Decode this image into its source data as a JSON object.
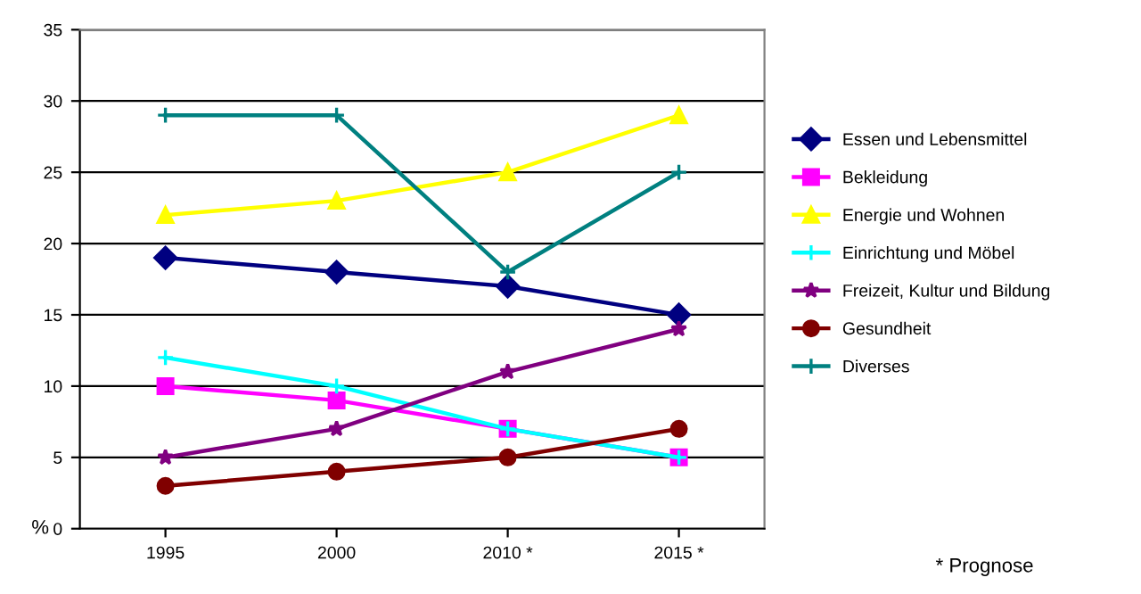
{
  "chart_data": {
    "type": "line",
    "ylabel": "%",
    "categories": [
      "1995",
      "2000",
      "2010 *",
      "2015 *"
    ],
    "series": [
      {
        "name": "Essen und Lebensmittel",
        "color": "#000080",
        "marker": "diamond",
        "values": [
          19,
          18,
          17,
          15
        ]
      },
      {
        "name": "Bekleidung",
        "color": "#ff00ff",
        "marker": "square",
        "values": [
          10,
          9,
          7,
          5
        ]
      },
      {
        "name": "Energie und Wohnen",
        "color": "#ffff00",
        "marker": "triangle",
        "values": [
          22,
          23,
          25,
          29
        ]
      },
      {
        "name": "Einrichtung und Möbel",
        "color": "#00ffff",
        "marker": "cross",
        "values": [
          12,
          10,
          7,
          5
        ]
      },
      {
        "name": "Freizeit, Kultur und Bildung",
        "color": "#800080",
        "marker": "star",
        "values": [
          5,
          7,
          11,
          14
        ]
      },
      {
        "name": "Gesundheit",
        "color": "#800000",
        "marker": "circle",
        "values": [
          3,
          4,
          5,
          7
        ]
      },
      {
        "name": "Diverses",
        "color": "#008080",
        "marker": "cross",
        "values": [
          29,
          29,
          18,
          25
        ]
      }
    ],
    "ylim": [
      0,
      35
    ],
    "yticks": [
      0,
      5,
      10,
      15,
      20,
      25,
      30,
      35
    ],
    "grid": "y",
    "legend": "right",
    "annotations": [
      "* Prognose"
    ]
  }
}
